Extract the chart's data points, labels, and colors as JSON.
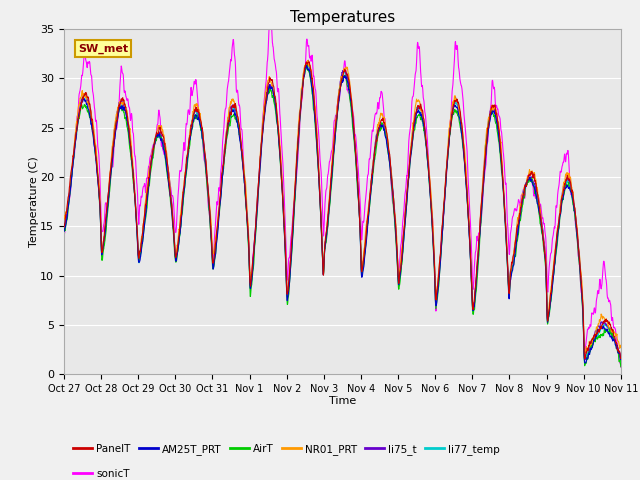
{
  "title": "Temperatures",
  "xlabel": "Time",
  "ylabel": "Temperature (C)",
  "ylim": [
    0,
    35
  ],
  "n_days": 15,
  "series_colors": {
    "PanelT": "#cc0000",
    "AM25T_PRT": "#0000cc",
    "AirT": "#00cc00",
    "NR01_PRT": "#ff9900",
    "li75_t": "#6600cc",
    "li77_temp": "#00cccc",
    "sonicT": "#ff00ff"
  },
  "xtick_labels": [
    "Oct 27",
    "Oct 28",
    "Oct 29",
    "Oct 30",
    "Oct 31",
    "Nov 1",
    "Nov 2",
    "Nov 3",
    "Nov 4",
    "Nov 5",
    "Nov 6",
    "Nov 7",
    "Nov 8",
    "Nov 9",
    "Nov 10",
    "Nov 11"
  ],
  "background_color": "#f0f0f0",
  "plot_background": "#e8e8e8",
  "annotation_text": "SW_met",
  "annotation_bg": "#ffff99",
  "annotation_border": "#cc9900",
  "grid_color": "#ffffff"
}
